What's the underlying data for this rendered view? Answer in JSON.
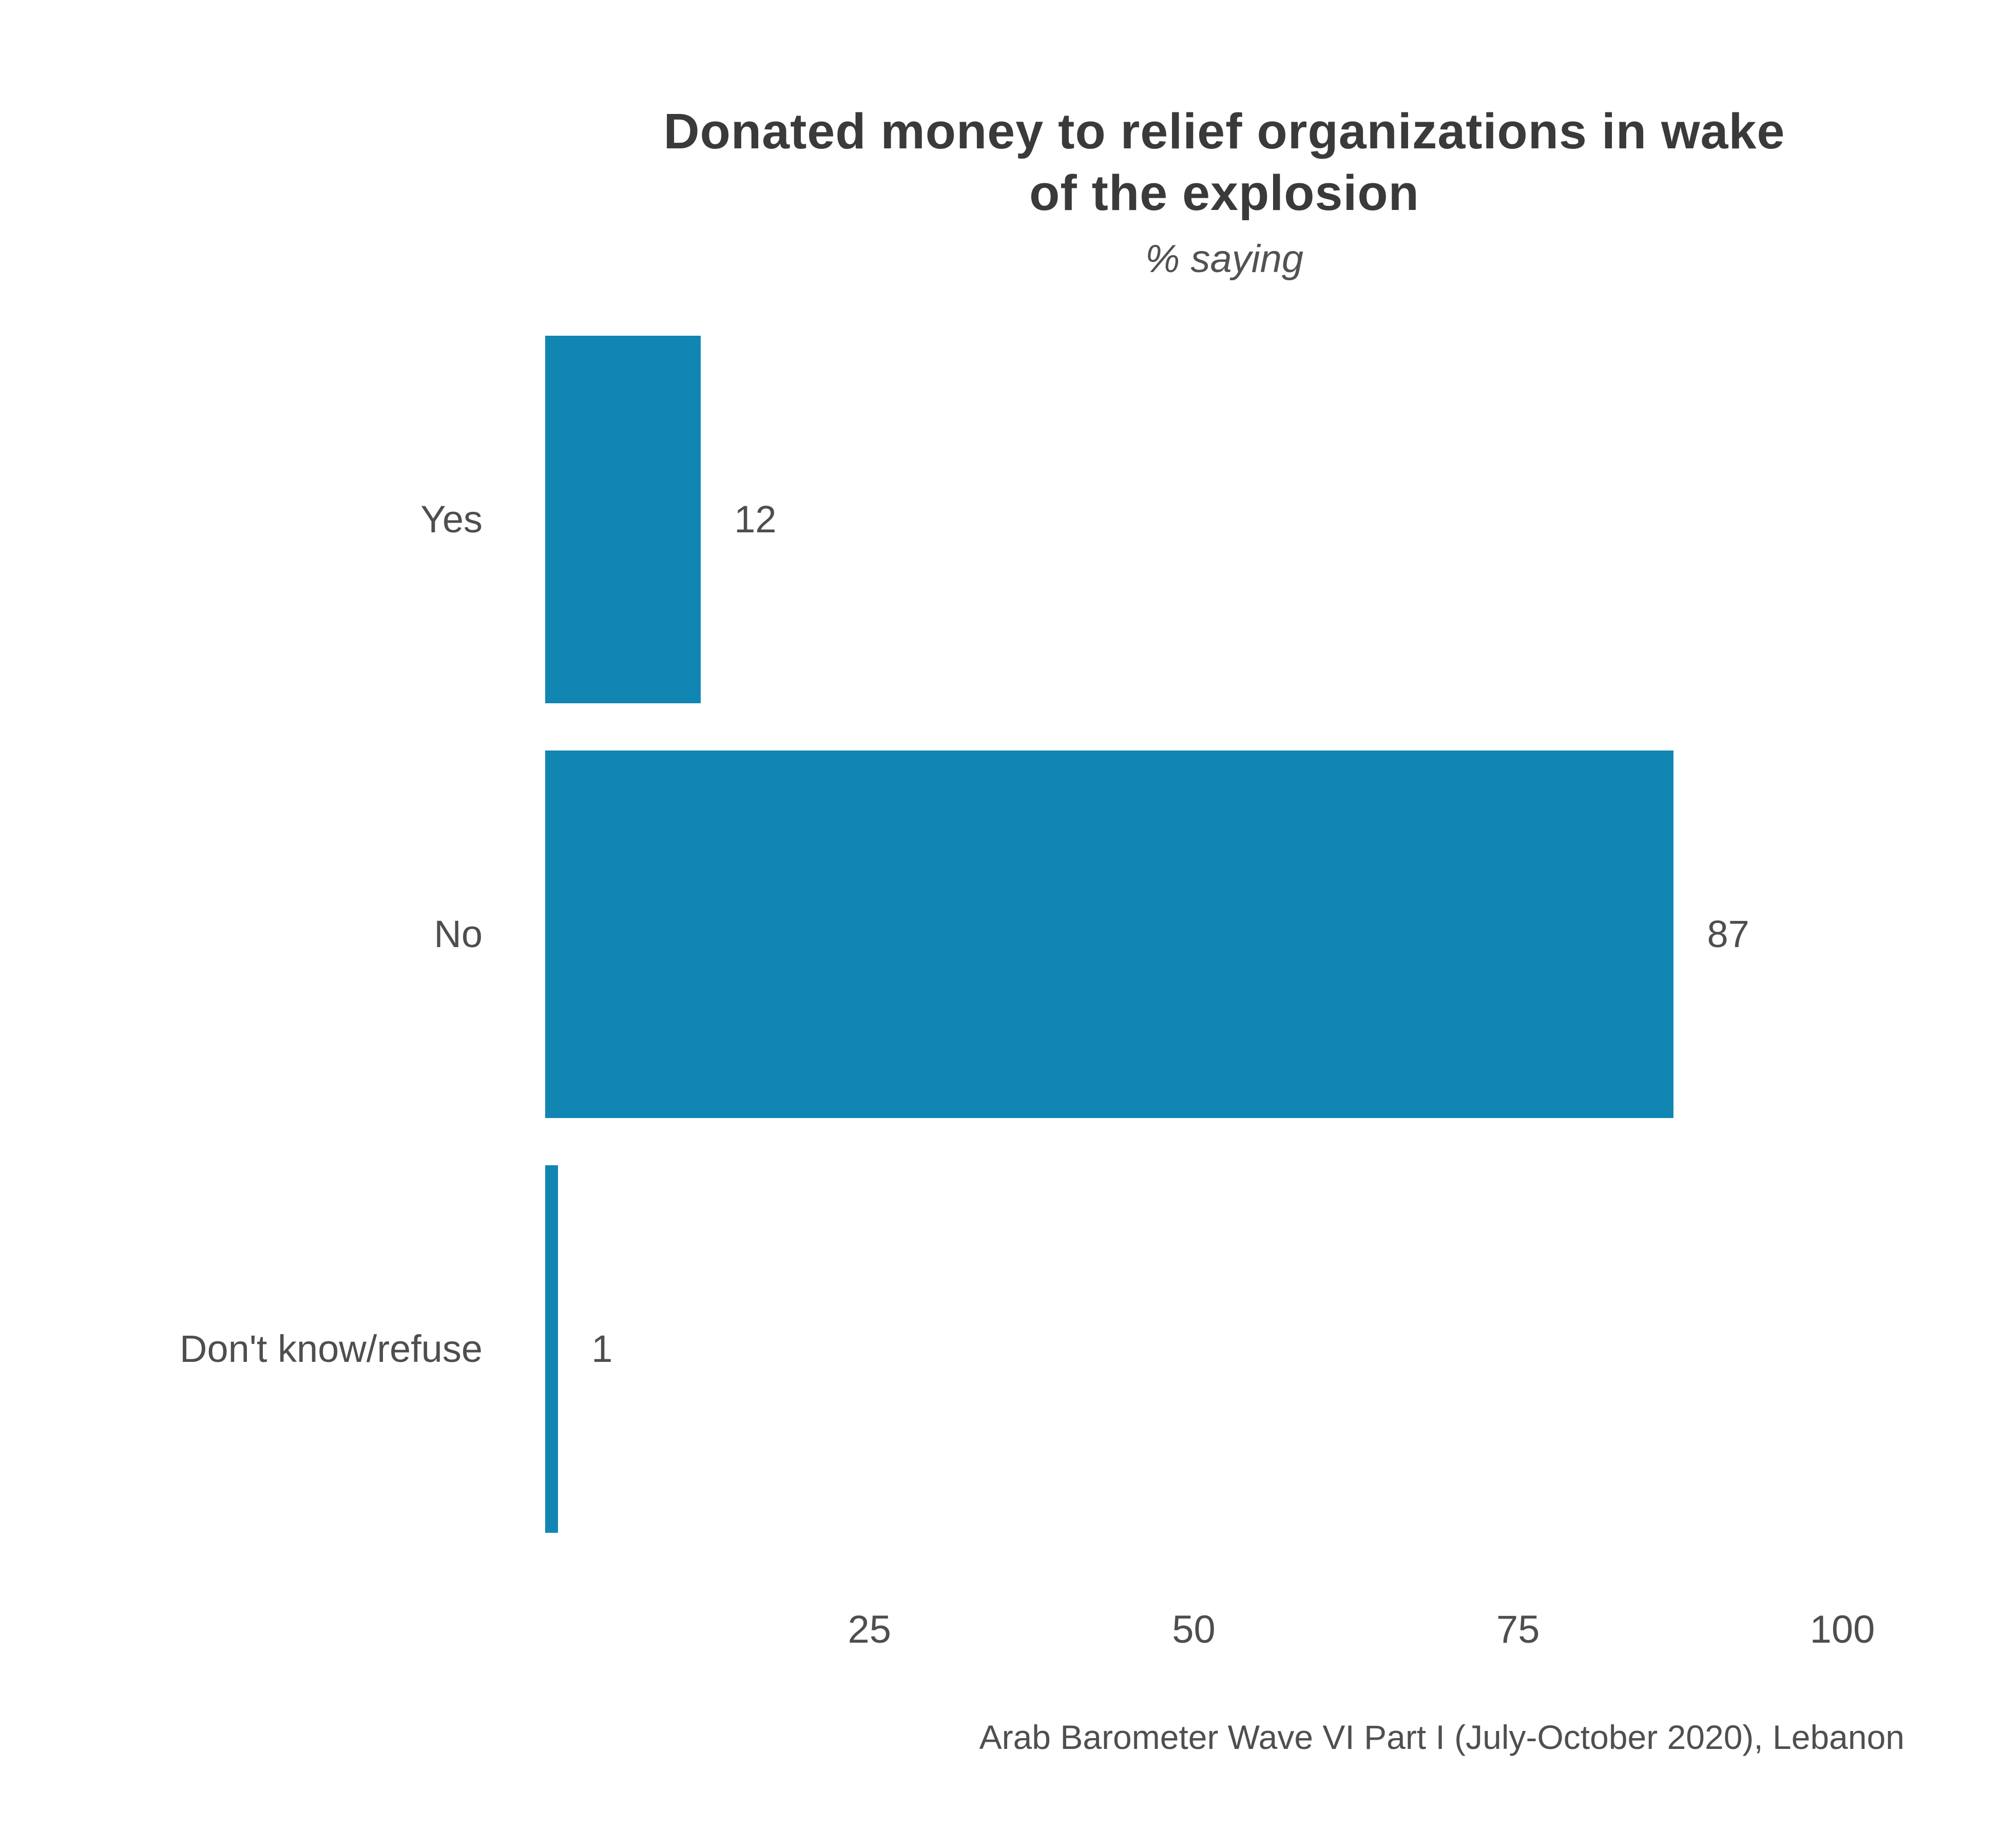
{
  "header": {
    "title_line1": "Donated money to relief organizations in wake",
    "title_line2": "of the explosion",
    "subtitle": "% saying"
  },
  "footer": {
    "source": "Arab Barometer Wave VI Part I (July-October 2020), Lebanon"
  },
  "colors": {
    "bar": "#1286b2",
    "title_text": "#3a3a3a",
    "label_text": "#4e4e4e"
  },
  "chart_data": {
    "type": "bar",
    "orientation": "horizontal",
    "title": "Donated money to relief organizations in wake of the explosion",
    "subtitle": "% saying",
    "categories": [
      "Yes",
      "No",
      "Don't know/refuse"
    ],
    "values": [
      12,
      87,
      1
    ],
    "value_labels": [
      "12",
      "87",
      "1"
    ],
    "xticks": [
      25,
      50,
      75,
      100
    ],
    "xlim": [
      0,
      100
    ],
    "xlabel": "",
    "ylabel": "",
    "grid": false,
    "legend": "none",
    "source": "Arab Barometer Wave VI Part I (July-October 2020), Lebanon"
  }
}
